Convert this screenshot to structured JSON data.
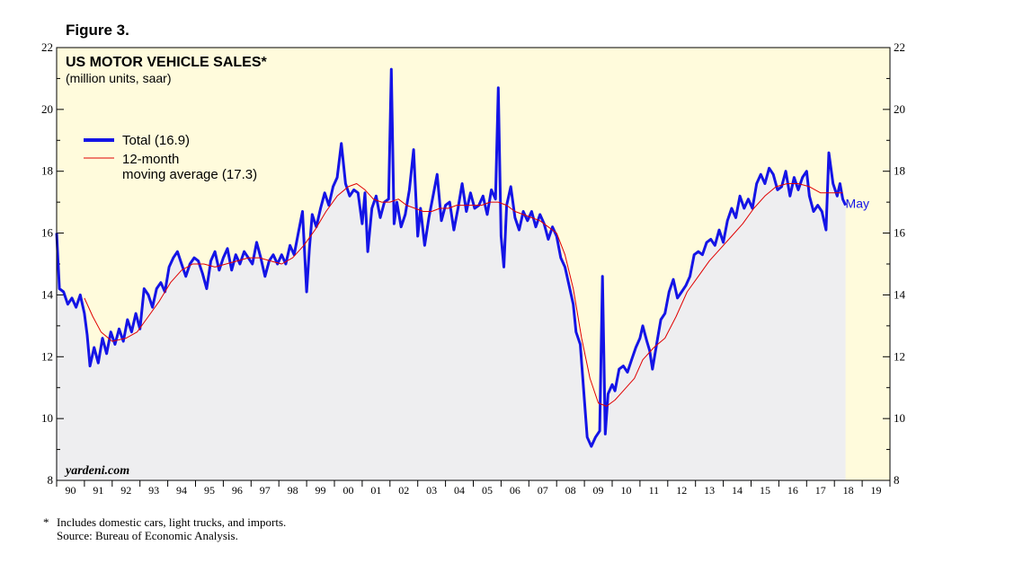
{
  "figure_label": "Figure 3.",
  "footnote": {
    "marker": "*",
    "note": "Includes domestic cars, light trucks, and imports.",
    "source": "Source: Bureau of Economic Analysis."
  },
  "colors": {
    "plot_bg": "#fffbdc",
    "area_fill": "#eeeef0",
    "total": "#1414e6",
    "average": "#e00000"
  },
  "chart_data": {
    "type": "line",
    "title": "US MOTOR VEHICLE SALES*",
    "subtitle": "(million units, saar)",
    "credit": "yardeni.com",
    "legend_placement": "top-left",
    "ylim": [
      8,
      22
    ],
    "yticks": [
      8,
      10,
      12,
      14,
      16,
      18,
      20,
      22
    ],
    "xlim": [
      1990,
      2020
    ],
    "xtick_labels": [
      "90",
      "91",
      "92",
      "93",
      "94",
      "95",
      "96",
      "97",
      "98",
      "99",
      "00",
      "01",
      "02",
      "03",
      "04",
      "05",
      "06",
      "07",
      "08",
      "09",
      "10",
      "11",
      "12",
      "13",
      "14",
      "15",
      "16",
      "17",
      "18",
      "19"
    ],
    "annotation": {
      "text": "May",
      "x": 2018.4,
      "y": 16.9
    },
    "series": [
      {
        "name": "Total (16.9)",
        "style": "thick",
        "area": true,
        "points": [
          [
            1990.0,
            16.0
          ],
          [
            1990.1,
            14.2
          ],
          [
            1990.25,
            14.1
          ],
          [
            1990.4,
            13.7
          ],
          [
            1990.55,
            13.9
          ],
          [
            1990.7,
            13.6
          ],
          [
            1990.85,
            14.0
          ],
          [
            1991.0,
            13.4
          ],
          [
            1991.1,
            12.7
          ],
          [
            1991.2,
            11.7
          ],
          [
            1991.35,
            12.3
          ],
          [
            1991.5,
            11.8
          ],
          [
            1991.65,
            12.6
          ],
          [
            1991.8,
            12.1
          ],
          [
            1991.95,
            12.8
          ],
          [
            1992.1,
            12.4
          ],
          [
            1992.25,
            12.9
          ],
          [
            1992.4,
            12.5
          ],
          [
            1992.55,
            13.2
          ],
          [
            1992.7,
            12.8
          ],
          [
            1992.85,
            13.4
          ],
          [
            1993.0,
            12.9
          ],
          [
            1993.15,
            14.2
          ],
          [
            1993.3,
            14.0
          ],
          [
            1993.45,
            13.6
          ],
          [
            1993.6,
            14.2
          ],
          [
            1993.75,
            14.4
          ],
          [
            1993.9,
            14.1
          ],
          [
            1994.05,
            14.9
          ],
          [
            1994.2,
            15.2
          ],
          [
            1994.35,
            15.4
          ],
          [
            1994.5,
            15.0
          ],
          [
            1994.65,
            14.6
          ],
          [
            1994.8,
            15.0
          ],
          [
            1994.95,
            15.2
          ],
          [
            1995.1,
            15.1
          ],
          [
            1995.25,
            14.7
          ],
          [
            1995.4,
            14.2
          ],
          [
            1995.55,
            15.1
          ],
          [
            1995.7,
            15.4
          ],
          [
            1995.85,
            14.8
          ],
          [
            1996.0,
            15.2
          ],
          [
            1996.15,
            15.5
          ],
          [
            1996.3,
            14.8
          ],
          [
            1996.45,
            15.3
          ],
          [
            1996.6,
            15.0
          ],
          [
            1996.75,
            15.4
          ],
          [
            1996.9,
            15.2
          ],
          [
            1997.05,
            15.0
          ],
          [
            1997.2,
            15.7
          ],
          [
            1997.35,
            15.2
          ],
          [
            1997.5,
            14.6
          ],
          [
            1997.65,
            15.1
          ],
          [
            1997.8,
            15.3
          ],
          [
            1997.95,
            15.0
          ],
          [
            1998.1,
            15.3
          ],
          [
            1998.25,
            15.0
          ],
          [
            1998.4,
            15.6
          ],
          [
            1998.55,
            15.3
          ],
          [
            1998.7,
            16.0
          ],
          [
            1998.85,
            16.7
          ],
          [
            1999.0,
            14.1
          ],
          [
            1999.1,
            15.5
          ],
          [
            1999.2,
            16.6
          ],
          [
            1999.35,
            16.2
          ],
          [
            1999.5,
            16.8
          ],
          [
            1999.65,
            17.3
          ],
          [
            1999.8,
            16.9
          ],
          [
            1999.95,
            17.5
          ],
          [
            2000.1,
            17.8
          ],
          [
            2000.25,
            18.9
          ],
          [
            2000.4,
            17.6
          ],
          [
            2000.55,
            17.2
          ],
          [
            2000.7,
            17.4
          ],
          [
            2000.85,
            17.3
          ],
          [
            2001.0,
            16.3
          ],
          [
            2001.1,
            17.3
          ],
          [
            2001.2,
            15.4
          ],
          [
            2001.35,
            16.8
          ],
          [
            2001.5,
            17.2
          ],
          [
            2001.65,
            16.5
          ],
          [
            2001.8,
            17.0
          ],
          [
            2001.95,
            17.1
          ],
          [
            2002.05,
            21.3
          ],
          [
            2002.15,
            16.3
          ],
          [
            2002.25,
            17.0
          ],
          [
            2002.4,
            16.2
          ],
          [
            2002.55,
            16.6
          ],
          [
            2002.7,
            17.4
          ],
          [
            2002.85,
            18.7
          ],
          [
            2003.0,
            15.9
          ],
          [
            2003.1,
            16.8
          ],
          [
            2003.25,
            15.6
          ],
          [
            2003.4,
            16.5
          ],
          [
            2003.55,
            17.2
          ],
          [
            2003.7,
            17.9
          ],
          [
            2003.85,
            16.4
          ],
          [
            2004.0,
            16.9
          ],
          [
            2004.15,
            17.0
          ],
          [
            2004.3,
            16.1
          ],
          [
            2004.45,
            16.8
          ],
          [
            2004.6,
            17.6
          ],
          [
            2004.75,
            16.7
          ],
          [
            2004.9,
            17.3
          ],
          [
            2005.05,
            16.8
          ],
          [
            2005.2,
            16.9
          ],
          [
            2005.35,
            17.2
          ],
          [
            2005.5,
            16.6
          ],
          [
            2005.65,
            17.4
          ],
          [
            2005.8,
            17.1
          ],
          [
            2005.9,
            20.7
          ],
          [
            2006.0,
            15.9
          ],
          [
            2006.1,
            14.9
          ],
          [
            2006.2,
            16.9
          ],
          [
            2006.35,
            17.5
          ],
          [
            2006.5,
            16.5
          ],
          [
            2006.65,
            16.1
          ],
          [
            2006.8,
            16.7
          ],
          [
            2006.95,
            16.4
          ],
          [
            2007.1,
            16.7
          ],
          [
            2007.25,
            16.2
          ],
          [
            2007.4,
            16.6
          ],
          [
            2007.55,
            16.3
          ],
          [
            2007.7,
            15.8
          ],
          [
            2007.85,
            16.2
          ],
          [
            2008.0,
            15.9
          ],
          [
            2008.15,
            15.2
          ],
          [
            2008.3,
            14.9
          ],
          [
            2008.45,
            14.3
          ],
          [
            2008.6,
            13.7
          ],
          [
            2008.7,
            12.8
          ],
          [
            2008.85,
            12.4
          ],
          [
            2009.0,
            10.6
          ],
          [
            2009.1,
            9.4
          ],
          [
            2009.25,
            9.1
          ],
          [
            2009.4,
            9.4
          ],
          [
            2009.55,
            9.6
          ],
          [
            2009.65,
            14.6
          ],
          [
            2009.75,
            9.5
          ],
          [
            2009.85,
            10.8
          ],
          [
            2010.0,
            11.1
          ],
          [
            2010.1,
            10.9
          ],
          [
            2010.25,
            11.6
          ],
          [
            2010.4,
            11.7
          ],
          [
            2010.55,
            11.5
          ],
          [
            2010.7,
            11.9
          ],
          [
            2010.85,
            12.3
          ],
          [
            2011.0,
            12.6
          ],
          [
            2011.1,
            13.0
          ],
          [
            2011.25,
            12.5
          ],
          [
            2011.35,
            12.2
          ],
          [
            2011.45,
            11.6
          ],
          [
            2011.6,
            12.4
          ],
          [
            2011.75,
            13.2
          ],
          [
            2011.9,
            13.4
          ],
          [
            2012.05,
            14.1
          ],
          [
            2012.2,
            14.5
          ],
          [
            2012.35,
            13.9
          ],
          [
            2012.5,
            14.1
          ],
          [
            2012.65,
            14.3
          ],
          [
            2012.8,
            14.6
          ],
          [
            2012.95,
            15.3
          ],
          [
            2013.1,
            15.4
          ],
          [
            2013.25,
            15.3
          ],
          [
            2013.4,
            15.7
          ],
          [
            2013.55,
            15.8
          ],
          [
            2013.7,
            15.6
          ],
          [
            2013.85,
            16.1
          ],
          [
            2014.0,
            15.7
          ],
          [
            2014.15,
            16.4
          ],
          [
            2014.3,
            16.8
          ],
          [
            2014.45,
            16.5
          ],
          [
            2014.6,
            17.2
          ],
          [
            2014.75,
            16.8
          ],
          [
            2014.9,
            17.1
          ],
          [
            2015.05,
            16.8
          ],
          [
            2015.2,
            17.6
          ],
          [
            2015.35,
            17.9
          ],
          [
            2015.5,
            17.6
          ],
          [
            2015.65,
            18.1
          ],
          [
            2015.8,
            17.9
          ],
          [
            2015.95,
            17.4
          ],
          [
            2016.1,
            17.5
          ],
          [
            2016.25,
            18.0
          ],
          [
            2016.4,
            17.2
          ],
          [
            2016.55,
            17.8
          ],
          [
            2016.7,
            17.4
          ],
          [
            2016.85,
            17.8
          ],
          [
            2017.0,
            18.0
          ],
          [
            2017.1,
            17.2
          ],
          [
            2017.25,
            16.7
          ],
          [
            2017.4,
            16.9
          ],
          [
            2017.55,
            16.7
          ],
          [
            2017.7,
            16.1
          ],
          [
            2017.8,
            18.6
          ],
          [
            2017.95,
            17.6
          ],
          [
            2018.1,
            17.2
          ],
          [
            2018.2,
            17.6
          ],
          [
            2018.3,
            17.1
          ],
          [
            2018.4,
            16.9
          ]
        ]
      },
      {
        "name": "12-month moving average (17.3)",
        "style": "thin",
        "area": false,
        "points": [
          [
            1991.0,
            13.9
          ],
          [
            1991.3,
            13.3
          ],
          [
            1991.6,
            12.8
          ],
          [
            1992.0,
            12.5
          ],
          [
            1992.5,
            12.6
          ],
          [
            1992.9,
            12.8
          ],
          [
            1993.3,
            13.3
          ],
          [
            1993.7,
            13.8
          ],
          [
            1994.1,
            14.4
          ],
          [
            1994.5,
            14.8
          ],
          [
            1994.9,
            15.0
          ],
          [
            1995.3,
            15.0
          ],
          [
            1995.7,
            14.9
          ],
          [
            1996.1,
            15.0
          ],
          [
            1996.5,
            15.1
          ],
          [
            1996.9,
            15.2
          ],
          [
            1997.3,
            15.2
          ],
          [
            1997.7,
            15.1
          ],
          [
            1998.1,
            15.0
          ],
          [
            1998.5,
            15.2
          ],
          [
            1998.9,
            15.6
          ],
          [
            1999.3,
            16.1
          ],
          [
            1999.7,
            16.7
          ],
          [
            2000.1,
            17.2
          ],
          [
            2000.5,
            17.5
          ],
          [
            2000.8,
            17.6
          ],
          [
            2001.1,
            17.4
          ],
          [
            2001.4,
            17.1
          ],
          [
            2001.7,
            17.0
          ],
          [
            2002.0,
            17.0
          ],
          [
            2002.3,
            17.1
          ],
          [
            2002.6,
            16.9
          ],
          [
            2002.9,
            16.8
          ],
          [
            2003.2,
            16.7
          ],
          [
            2003.5,
            16.7
          ],
          [
            2003.8,
            16.8
          ],
          [
            2004.1,
            16.8
          ],
          [
            2004.4,
            16.9
          ],
          [
            2004.7,
            16.9
          ],
          [
            2005.0,
            16.9
          ],
          [
            2005.3,
            16.9
          ],
          [
            2005.6,
            17.0
          ],
          [
            2005.9,
            17.0
          ],
          [
            2006.2,
            16.9
          ],
          [
            2006.5,
            16.7
          ],
          [
            2006.8,
            16.6
          ],
          [
            2007.1,
            16.5
          ],
          [
            2007.4,
            16.4
          ],
          [
            2007.7,
            16.2
          ],
          [
            2008.0,
            16.0
          ],
          [
            2008.3,
            15.3
          ],
          [
            2008.6,
            14.2
          ],
          [
            2008.9,
            12.6
          ],
          [
            2009.2,
            11.3
          ],
          [
            2009.5,
            10.5
          ],
          [
            2009.8,
            10.4
          ],
          [
            2010.1,
            10.6
          ],
          [
            2010.4,
            10.9
          ],
          [
            2010.6,
            11.1
          ],
          [
            2010.8,
            11.3
          ],
          [
            2011.1,
            11.9
          ],
          [
            2011.5,
            12.3
          ],
          [
            2011.9,
            12.6
          ],
          [
            2012.3,
            13.3
          ],
          [
            2012.7,
            14.1
          ],
          [
            2013.1,
            14.6
          ],
          [
            2013.5,
            15.1
          ],
          [
            2013.9,
            15.5
          ],
          [
            2014.3,
            15.9
          ],
          [
            2014.7,
            16.3
          ],
          [
            2015.1,
            16.8
          ],
          [
            2015.5,
            17.2
          ],
          [
            2015.9,
            17.5
          ],
          [
            2016.3,
            17.6
          ],
          [
            2016.7,
            17.6
          ],
          [
            2017.1,
            17.5
          ],
          [
            2017.5,
            17.3
          ],
          [
            2017.9,
            17.3
          ],
          [
            2018.3,
            17.3
          ]
        ]
      }
    ]
  }
}
